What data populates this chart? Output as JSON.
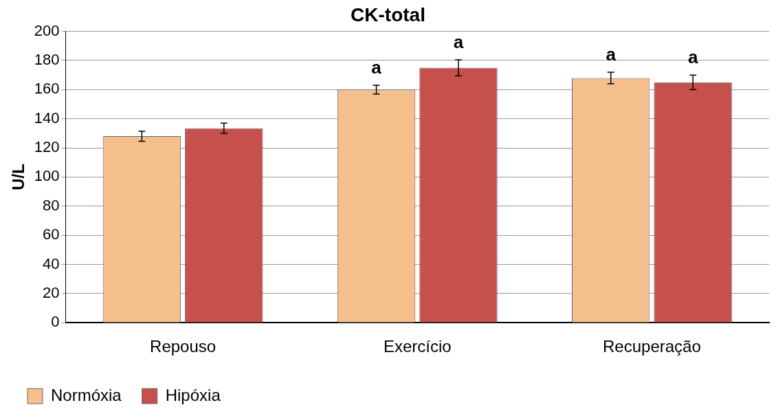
{
  "chart_data": {
    "type": "bar",
    "title": "CK-total",
    "ylabel": "U/L",
    "categories": [
      "Repouso",
      "Exercício",
      "Recuperação"
    ],
    "series": [
      {
        "name": "Normóxia",
        "color": "#f5c08e",
        "values": [
          128,
          160,
          168
        ],
        "errors": [
          3.5,
          3,
          4
        ]
      },
      {
        "name": "Hipóxia",
        "color": "#c5504c",
        "values": [
          133.5,
          175,
          165
        ],
        "errors": [
          3.5,
          5.5,
          5
        ]
      }
    ],
    "ylim": [
      0,
      200
    ],
    "yticks": [
      0,
      20,
      40,
      60,
      80,
      100,
      120,
      140,
      160,
      180,
      200
    ],
    "grid": "y",
    "legend": "bottom left",
    "annotations": [
      "a",
      "a",
      "a",
      "a"
    ]
  }
}
